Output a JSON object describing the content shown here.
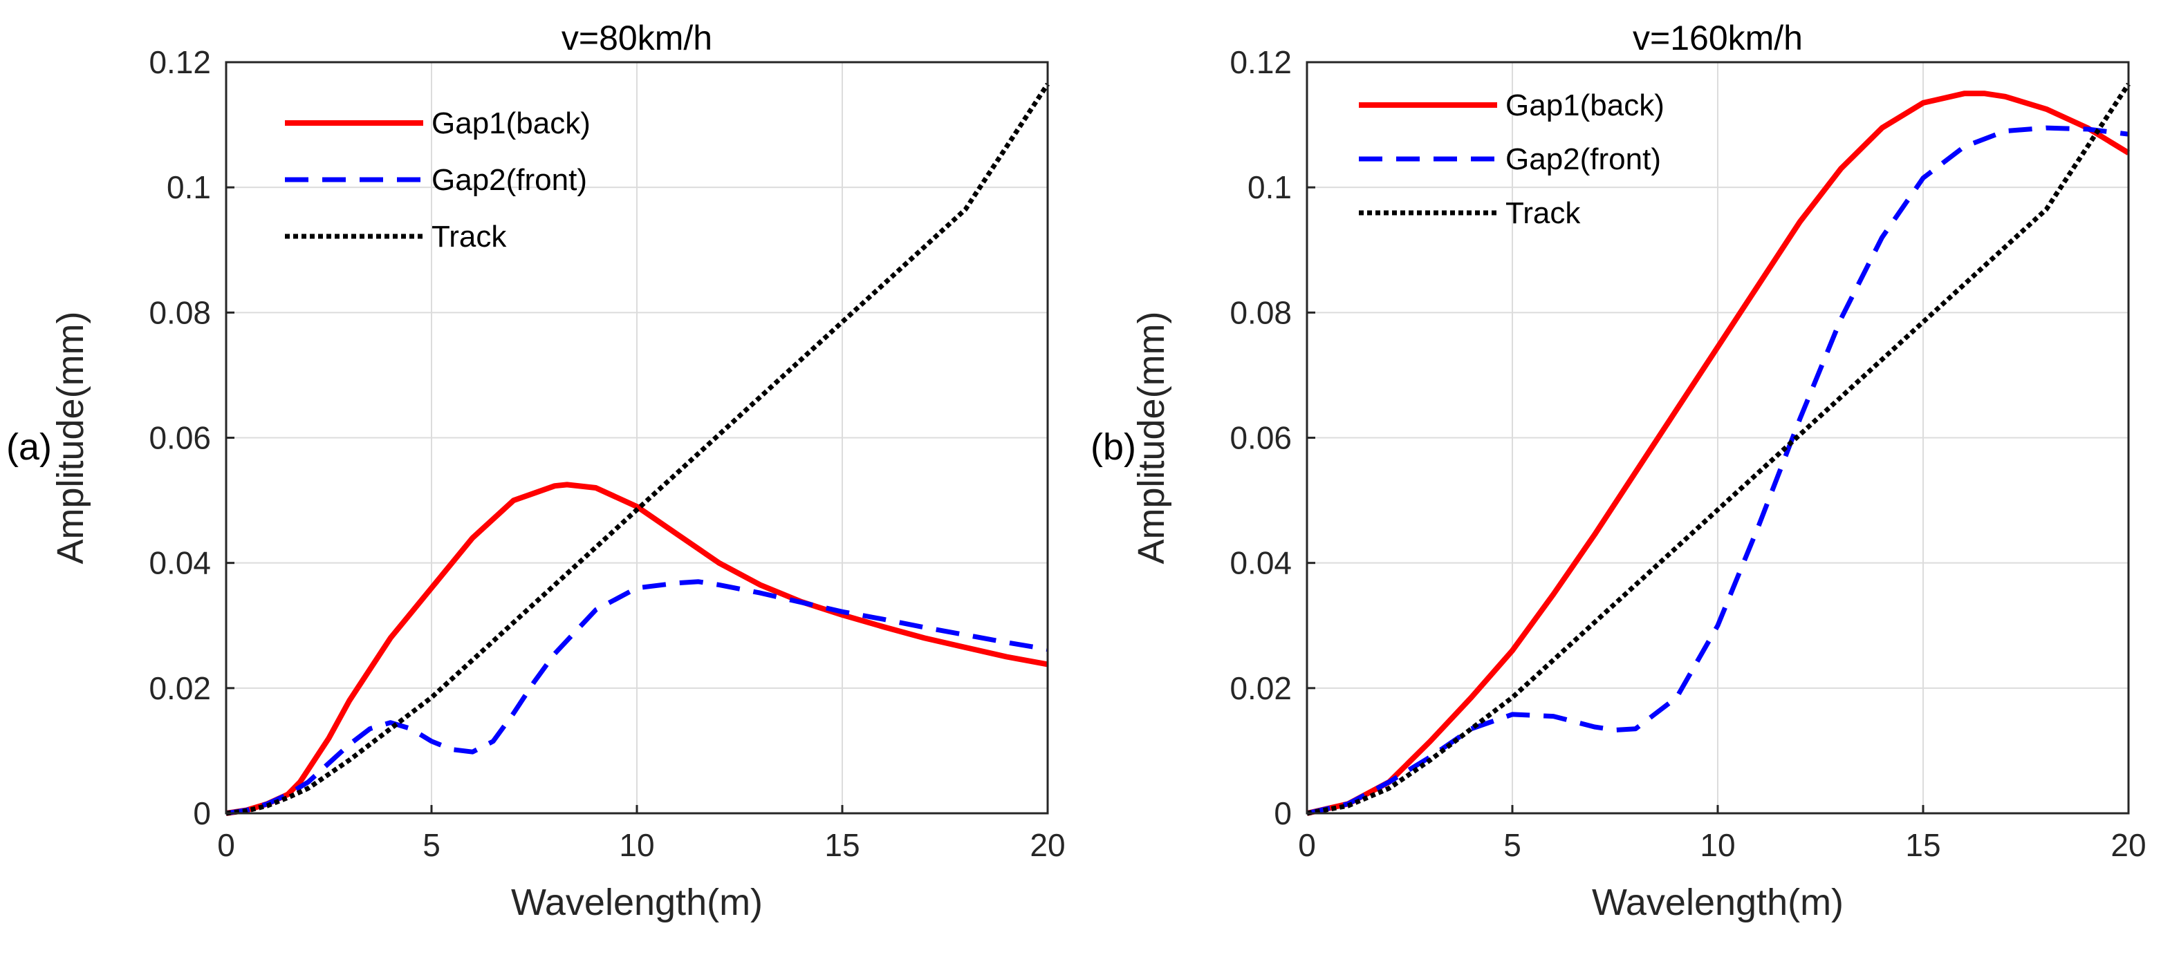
{
  "chart_data": [
    {
      "type": "line",
      "panel_label": "(a)",
      "title": "v=80km/h",
      "xlabel": "Wavelength(m)",
      "ylabel": "Amplitude(mm)",
      "xlim": [
        0,
        20
      ],
      "ylim": [
        0,
        0.12
      ],
      "xticks": [
        "0",
        "5",
        "10",
        "15",
        "20"
      ],
      "yticks": [
        "0",
        "0.02",
        "0.04",
        "0.06",
        "0.08",
        "0.1",
        "0.12"
      ],
      "grid": true,
      "legend_position": "top-left",
      "series": [
        {
          "name": "Gap1(back)",
          "color": "#ff0000",
          "style": "solid",
          "x": [
            0,
            0.5,
            1,
            1.5,
            1.8,
            2.5,
            3,
            4,
            5,
            6,
            7,
            8,
            8.3,
            9,
            10,
            11,
            12,
            13,
            14,
            15,
            16,
            17,
            18,
            19,
            20
          ],
          "y": [
            0,
            0.0005,
            0.0015,
            0.003,
            0.005,
            0.012,
            0.018,
            0.028,
            0.036,
            0.044,
            0.05,
            0.0523,
            0.0525,
            0.052,
            0.049,
            0.0445,
            0.04,
            0.0365,
            0.0338,
            0.0317,
            0.0298,
            0.028,
            0.0265,
            0.025,
            0.0238
          ]
        },
        {
          "name": "Gap2(front)",
          "color": "#0000ff",
          "style": "dashed",
          "x": [
            0,
            0.5,
            1,
            1.5,
            2,
            2.5,
            3,
            3.5,
            4,
            4.5,
            5,
            5.5,
            6,
            6.5,
            7,
            7.5,
            8,
            9,
            10,
            11,
            11.5,
            12,
            13,
            14,
            15,
            16,
            17,
            18,
            19,
            20
          ],
          "y": [
            0,
            0.0005,
            0.0015,
            0.003,
            0.005,
            0.008,
            0.011,
            0.0135,
            0.0145,
            0.0135,
            0.0115,
            0.0102,
            0.0098,
            0.0115,
            0.016,
            0.021,
            0.0255,
            0.0325,
            0.036,
            0.0368,
            0.037,
            0.0365,
            0.0352,
            0.0337,
            0.0322,
            0.031,
            0.0297,
            0.0285,
            0.0273,
            0.0262
          ]
        },
        {
          "name": "Track",
          "color": "#000000",
          "style": "dotted",
          "x": [
            0,
            0.5,
            1,
            1.5,
            2,
            3,
            4,
            5,
            6,
            8,
            10,
            12,
            14,
            16,
            18,
            20
          ],
          "y": [
            0,
            0.0004,
            0.0012,
            0.0025,
            0.004,
            0.0085,
            0.0135,
            0.0185,
            0.0245,
            0.0365,
            0.0485,
            0.0605,
            0.0725,
            0.0845,
            0.0965,
            0.1165
          ]
        }
      ]
    },
    {
      "type": "line",
      "panel_label": "(b)",
      "title": "v=160km/h",
      "xlabel": "Wavelength(m)",
      "ylabel": "Amplitude(mm)",
      "xlim": [
        0,
        20
      ],
      "ylim": [
        0,
        0.12
      ],
      "xticks": [
        "0",
        "5",
        "10",
        "15",
        "20"
      ],
      "yticks": [
        "0",
        "0.02",
        "0.04",
        "0.06",
        "0.08",
        "0.1",
        "0.12"
      ],
      "grid": true,
      "legend_position": "top-left",
      "series": [
        {
          "name": "Gap1(back)",
          "color": "#ff0000",
          "style": "solid",
          "x": [
            0,
            1,
            2,
            3,
            4,
            5,
            6,
            7,
            8,
            9,
            10,
            11,
            12,
            13,
            14,
            15,
            16,
            16.5,
            17,
            18,
            19,
            20
          ],
          "y": [
            0,
            0.0015,
            0.005,
            0.0115,
            0.0185,
            0.026,
            0.035,
            0.0445,
            0.0545,
            0.0645,
            0.0745,
            0.0845,
            0.0945,
            0.103,
            0.1095,
            0.1135,
            0.115,
            0.115,
            0.1145,
            0.1125,
            0.1095,
            0.1055
          ]
        },
        {
          "name": "Gap2(front)",
          "color": "#0000ff",
          "style": "dashed",
          "x": [
            0,
            1,
            2,
            3,
            4,
            5,
            6,
            7,
            7.5,
            8,
            9,
            10,
            11,
            12,
            13,
            14,
            15,
            16,
            17,
            18,
            19,
            20
          ],
          "y": [
            0,
            0.0015,
            0.005,
            0.009,
            0.0135,
            0.0158,
            0.0155,
            0.0138,
            0.0133,
            0.0135,
            0.0185,
            0.03,
            0.046,
            0.063,
            0.079,
            0.092,
            0.1015,
            0.1065,
            0.109,
            0.1095,
            0.1093,
            0.1085
          ]
        },
        {
          "name": "Track",
          "color": "#000000",
          "style": "dotted",
          "x": [
            0,
            1,
            2,
            3,
            4,
            5,
            6,
            8,
            10,
            12,
            14,
            16,
            18,
            20
          ],
          "y": [
            0,
            0.0012,
            0.004,
            0.0085,
            0.0135,
            0.0185,
            0.0245,
            0.0365,
            0.0485,
            0.0605,
            0.0725,
            0.0845,
            0.0965,
            0.1165
          ]
        }
      ]
    }
  ]
}
